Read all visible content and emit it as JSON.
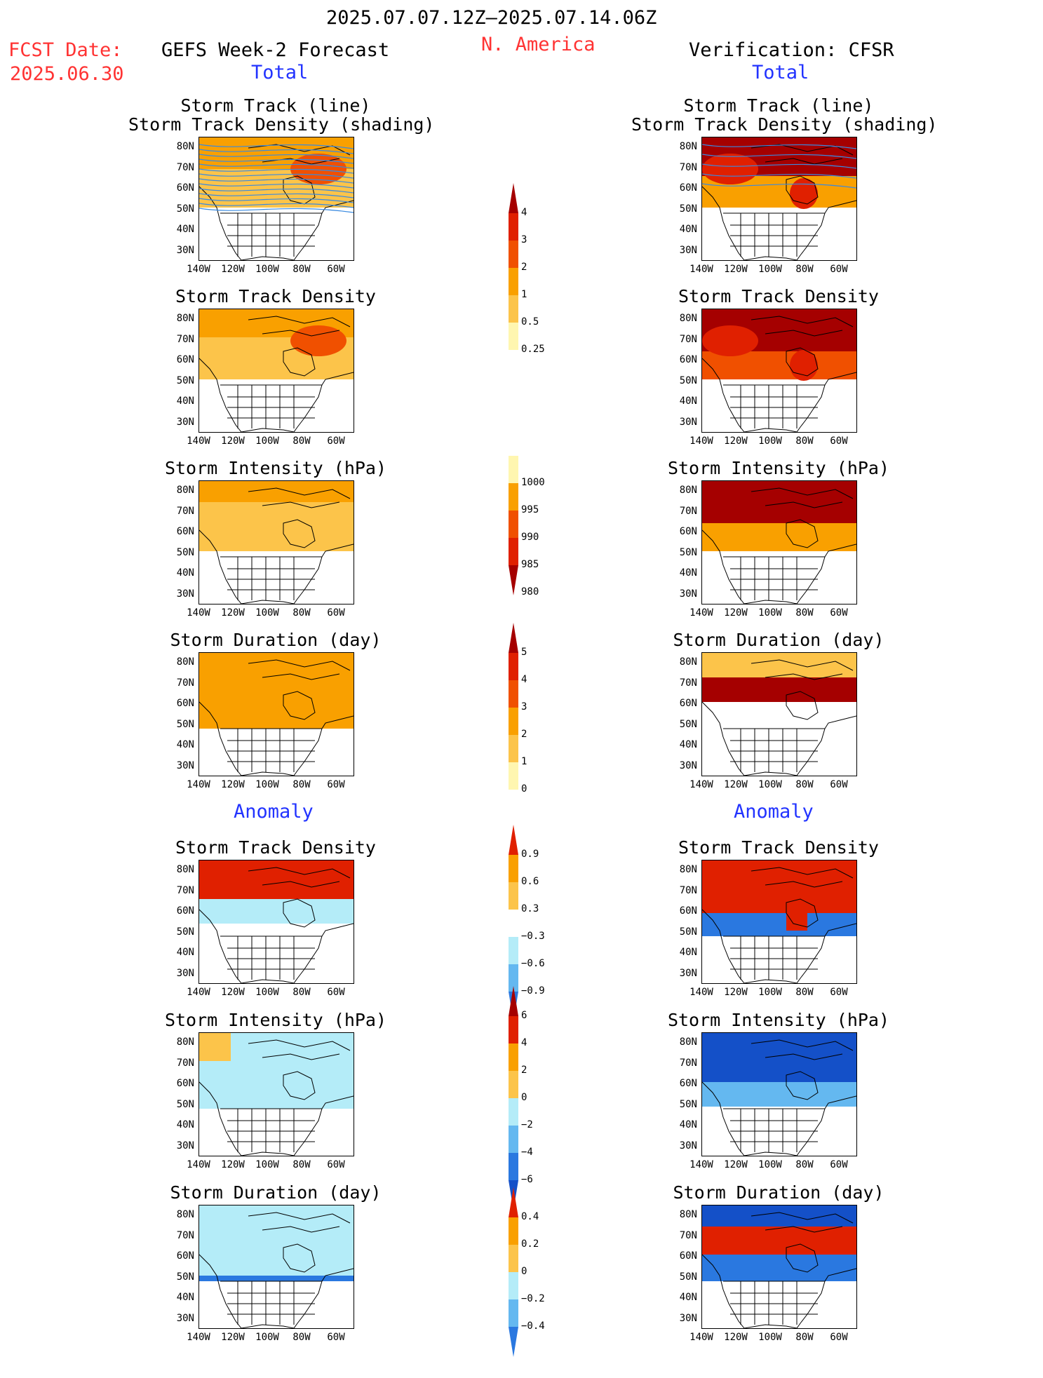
{
  "header": {
    "date_range": "2025.07.07.12Z–2025.07.14.06Z",
    "fcst_label": "FCST Date:",
    "fcst_date": "2025.06.30",
    "left_title": "GEFS Week-2 Forecast",
    "region": "N. America",
    "right_title": "Verification: CFSR",
    "total_label": "Total",
    "anomaly_label": "Anomaly"
  },
  "panel_titles": {
    "track_line": "Storm Track (line)",
    "track_shading": "Storm Track Density (shading)",
    "density": "Storm Track Density",
    "intensity": "Storm Intensity (hPa)",
    "duration": "Storm Duration (day)"
  },
  "axes": {
    "lat_ticks": [
      "80N",
      "70N",
      "60N",
      "50N",
      "40N",
      "30N"
    ],
    "lon_ticks": [
      "140W",
      "120W",
      "100W",
      "80W",
      "60W"
    ]
  },
  "colorbars": {
    "total_density": [
      "4",
      "3",
      "2",
      "1",
      "0.5",
      "0.25"
    ],
    "total_intensity": [
      "1000",
      "995",
      "990",
      "985",
      "980"
    ],
    "total_duration": [
      "5",
      "4",
      "3",
      "2",
      "1",
      "0"
    ],
    "anom_density": [
      "0.9",
      "0.6",
      "0.3",
      "−0.3",
      "−0.6",
      "−0.9"
    ],
    "anom_intensity": [
      "6",
      "4",
      "2",
      "0",
      "−2",
      "−4",
      "−6"
    ],
    "anom_duration": [
      "0.4",
      "0.2",
      "0",
      "−0.2",
      "−0.4"
    ]
  },
  "colors": {
    "dark_red": "#a50000",
    "red": "#e02000",
    "orange_red": "#f05000",
    "orange": "#f9a000",
    "light_orange": "#fcc44a",
    "pale_yellow": "#fff6b0",
    "light_blue": "#b4ecf8",
    "mid_blue": "#64b8f0",
    "blue": "#2a78e0",
    "deep_blue": "#1450c8",
    "track_blue": "#3a8ae0",
    "title_red": "#ff3333",
    "title_blue": "#2233ff"
  }
}
